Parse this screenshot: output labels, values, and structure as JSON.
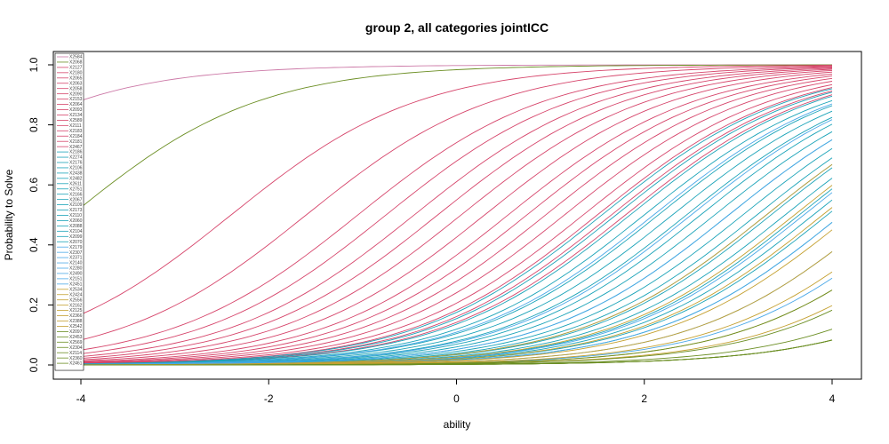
{
  "chart_data": {
    "type": "line",
    "title": "group 2, all categories jointICC",
    "xlabel": "ability",
    "ylabel": "Probability to Solve",
    "xlim": [
      -4,
      4
    ],
    "ylim": [
      0,
      1
    ],
    "xticks": [
      -4,
      -2,
      0,
      2,
      4
    ],
    "yticks": [
      0.0,
      0.2,
      0.4,
      0.6,
      0.8,
      1.0
    ],
    "ytick_labels": [
      "0.0",
      "0.2",
      "0.4",
      "0.6",
      "0.8",
      "1.0"
    ],
    "grid": false,
    "legend_position": "top-left",
    "curve_model": "logistic",
    "series": [
      {
        "name": "X2584",
        "b": -6.0,
        "color": "#cc79a7"
      },
      {
        "name": "X2068",
        "b": -4.1,
        "color": "#6b8e23"
      },
      {
        "name": "X2127",
        "b": -2.4,
        "color": "#d6456b"
      },
      {
        "name": "X2180",
        "b": -1.6,
        "color": "#d6456b"
      },
      {
        "name": "X2065",
        "b": -1.05,
        "color": "#d6456b"
      },
      {
        "name": "X2063",
        "b": -0.75,
        "color": "#d6456b"
      },
      {
        "name": "X2058",
        "b": -0.45,
        "color": "#d6456b"
      },
      {
        "name": "X2090",
        "b": -0.2,
        "color": "#d6456b"
      },
      {
        "name": "X2153",
        "b": 0.05,
        "color": "#d6456b"
      },
      {
        "name": "X2064",
        "b": 0.3,
        "color": "#d6456b"
      },
      {
        "name": "X2093",
        "b": 0.55,
        "color": "#d6456b"
      },
      {
        "name": "X2134",
        "b": 0.75,
        "color": "#d6456b"
      },
      {
        "name": "X2589",
        "b": 0.95,
        "color": "#d6456b"
      },
      {
        "name": "X2111",
        "b": 1.15,
        "color": "#d6456b"
      },
      {
        "name": "X2183",
        "b": 1.35,
        "color": "#d6456b"
      },
      {
        "name": "X2184",
        "b": 1.5,
        "color": "#d6456b"
      },
      {
        "name": "X2181",
        "b": 1.65,
        "color": "#d6456b"
      },
      {
        "name": "X2467",
        "b": 1.8,
        "color": "#d6456b"
      },
      {
        "name": "X2186",
        "b": 1.55,
        "color": "#1aa3b8"
      },
      {
        "name": "X2274",
        "b": 1.7,
        "color": "#1aa3b8"
      },
      {
        "name": "X2176",
        "b": 1.85,
        "color": "#1aa3b8"
      },
      {
        "name": "X2106",
        "b": 2.0,
        "color": "#1aa3b8"
      },
      {
        "name": "X2438",
        "b": 2.15,
        "color": "#1aa3b8"
      },
      {
        "name": "X2482",
        "b": 2.3,
        "color": "#1aa3b8"
      },
      {
        "name": "X2611",
        "b": 2.45,
        "color": "#1aa3b8"
      },
      {
        "name": "X2751",
        "b": 2.6,
        "color": "#1aa3b8"
      },
      {
        "name": "X2166",
        "b": 2.75,
        "color": "#1aa3b8"
      },
      {
        "name": "X2067",
        "b": 2.9,
        "color": "#1aa3b8"
      },
      {
        "name": "X2109",
        "b": 3.05,
        "color": "#1aa3b8"
      },
      {
        "name": "X2173",
        "b": 3.2,
        "color": "#1aa3b8"
      },
      {
        "name": "X2110",
        "b": 3.35,
        "color": "#1aa3b8"
      },
      {
        "name": "X2060",
        "b": 3.5,
        "color": "#1aa3b8"
      },
      {
        "name": "X2088",
        "b": 3.65,
        "color": "#1aa3b8"
      },
      {
        "name": "X2104",
        "b": 3.8,
        "color": "#1aa3b8"
      },
      {
        "name": "X2099",
        "b": 3.95,
        "color": "#1aa3b8"
      },
      {
        "name": "X2070",
        "b": 4.1,
        "color": "#1aa3b8"
      },
      {
        "name": "X2179",
        "b": 2.1,
        "color": "#4aa8e8"
      },
      {
        "name": "X2307",
        "b": 2.5,
        "color": "#4aa8e8"
      },
      {
        "name": "X2371",
        "b": 2.9,
        "color": "#4aa8e8"
      },
      {
        "name": "X2140",
        "b": 3.3,
        "color": "#4aa8e8"
      },
      {
        "name": "X2280",
        "b": 3.7,
        "color": "#4aa8e8"
      },
      {
        "name": "X2490",
        "b": 4.1,
        "color": "#4aa8e8"
      },
      {
        "name": "X2151",
        "b": 4.5,
        "color": "#4aa8e8"
      },
      {
        "name": "X2451",
        "b": 4.9,
        "color": "#4aa8e8"
      },
      {
        "name": "X2534",
        "b": 3.3,
        "color": "#c4a030"
      },
      {
        "name": "X2424",
        "b": 3.6,
        "color": "#c4a030"
      },
      {
        "name": "X2556",
        "b": 3.9,
        "color": "#c4a030"
      },
      {
        "name": "X2162",
        "b": 4.2,
        "color": "#c4a030"
      },
      {
        "name": "X2125",
        "b": 4.5,
        "color": "#c4a030"
      },
      {
        "name": "X2366",
        "b": 4.8,
        "color": "#c4a030"
      },
      {
        "name": "X2388",
        "b": 5.1,
        "color": "#c4a030"
      },
      {
        "name": "X2542",
        "b": 5.4,
        "color": "#c4a030"
      },
      {
        "name": "X2097",
        "b": 5.1,
        "color": "#6b8e23"
      },
      {
        "name": "X2453",
        "b": 5.5,
        "color": "#6b8e23"
      },
      {
        "name": "X2569",
        "b": 6.0,
        "color": "#6b8e23"
      },
      {
        "name": "X2304",
        "b": 6.4,
        "color": "#6b8e23"
      },
      {
        "name": "X2114",
        "b": 6.4,
        "color": "#6b8e23"
      },
      {
        "name": "X2360",
        "b": 6.4,
        "color": "#6b8e23"
      },
      {
        "name": "X2461",
        "b": 6.4,
        "color": "#6b8e23"
      }
    ]
  }
}
